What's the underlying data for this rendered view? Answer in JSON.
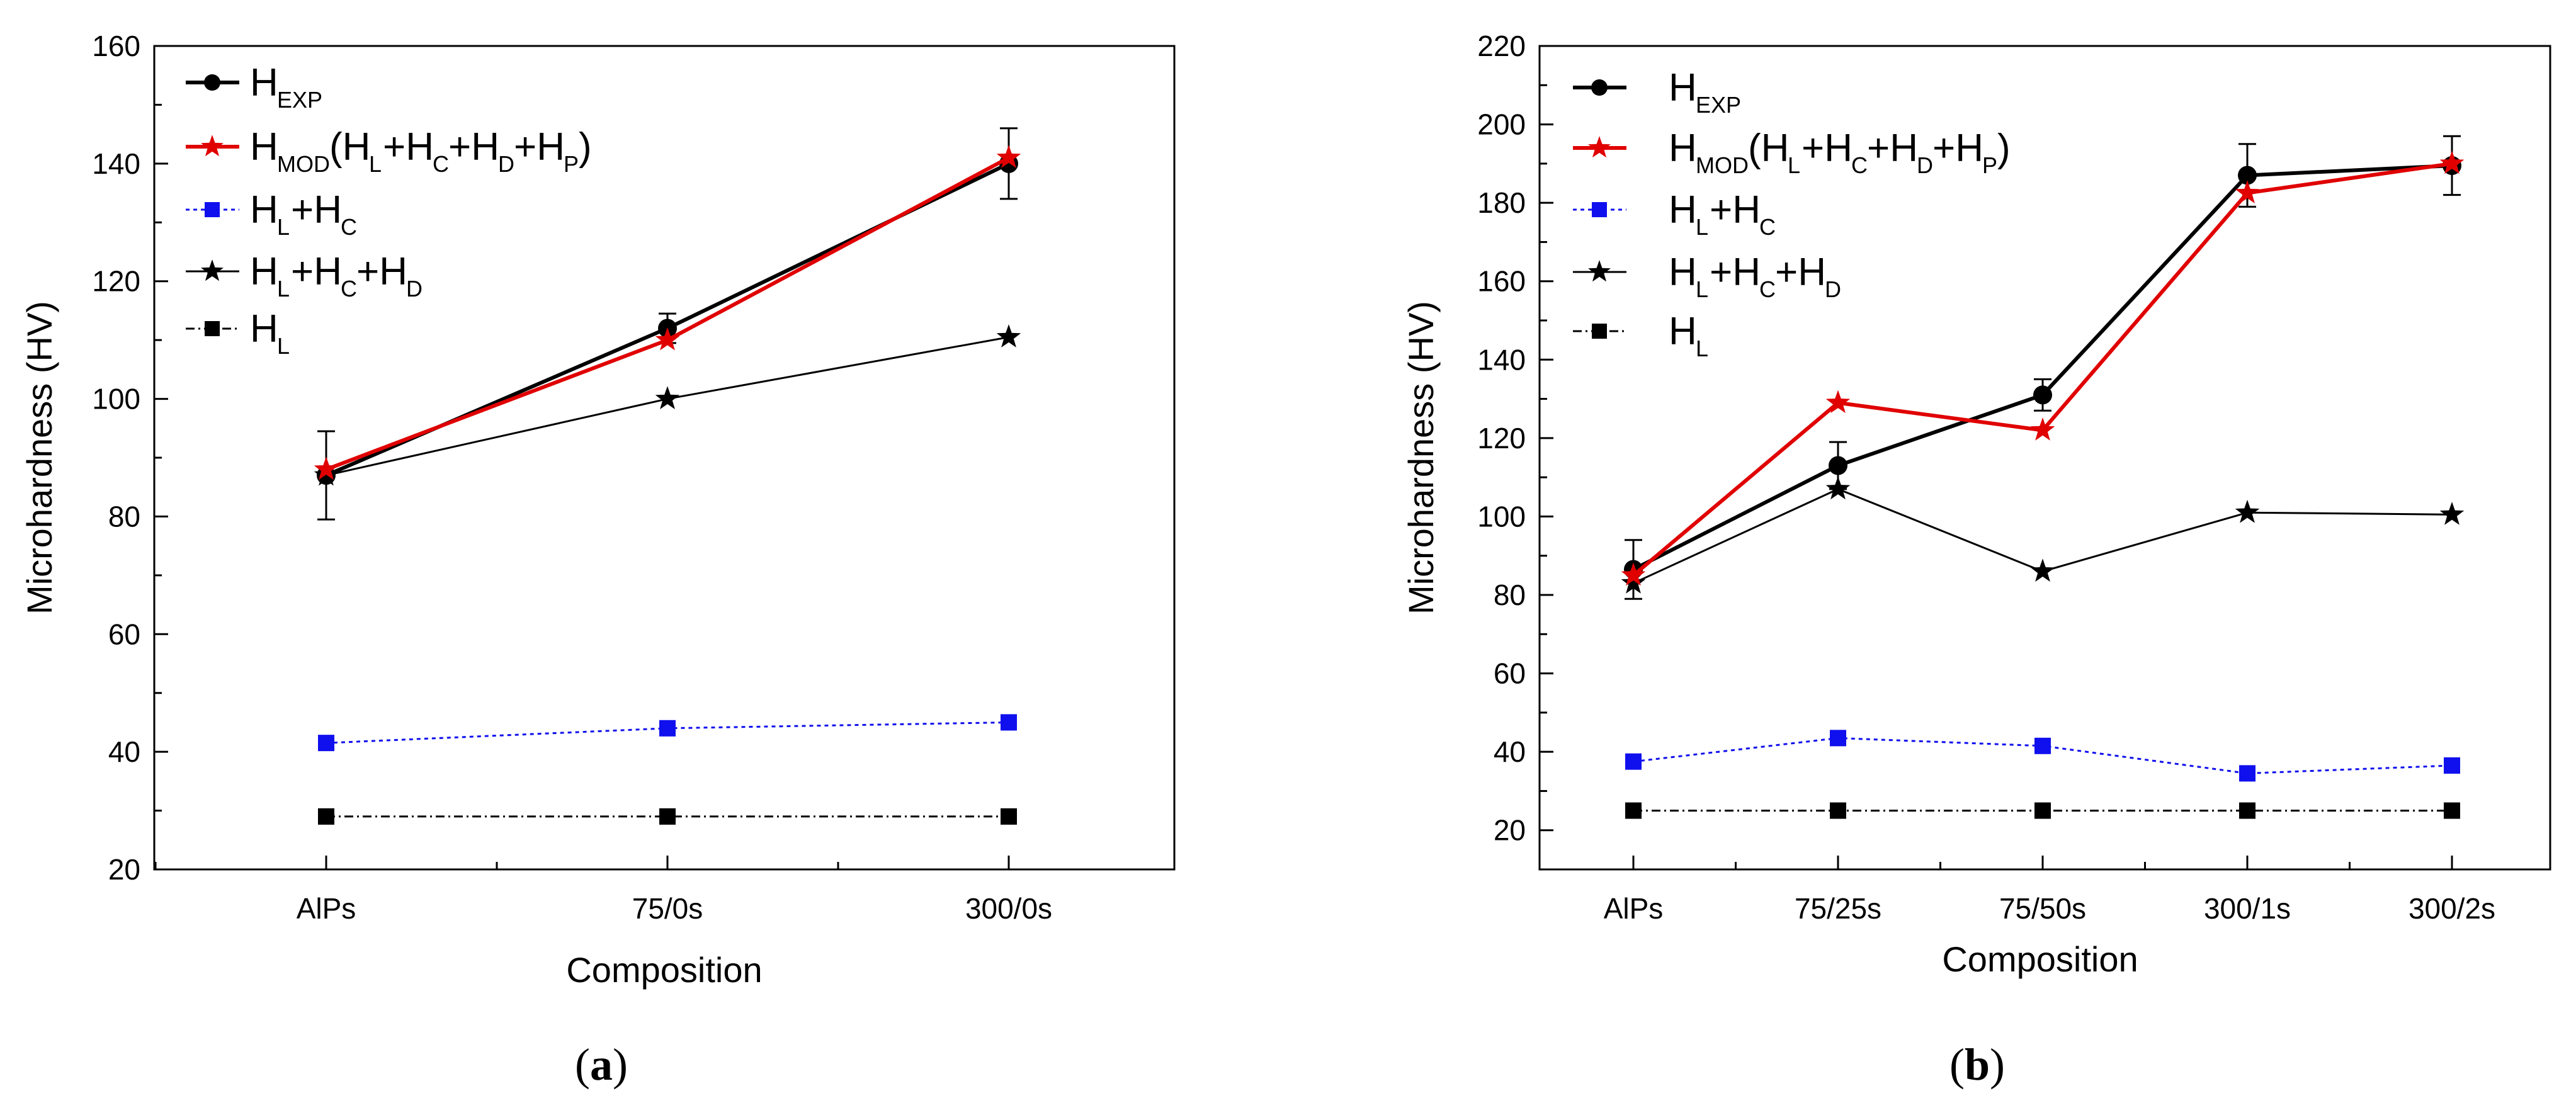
{
  "chart_data": [
    {
      "type": "line",
      "panel_label": "(a)",
      "panel_letter": "a",
      "xlabel": "Composition",
      "ylabel": "Microhardness (HV)",
      "categories": [
        "AlPs",
        "75/0s",
        "300/0s"
      ],
      "ylim": [
        20,
        160
      ],
      "yticks": [
        20,
        40,
        60,
        80,
        100,
        120,
        140,
        160
      ],
      "legend_position": "top-left",
      "series": [
        {
          "name": "H_EXP",
          "label_main": "H",
          "label_sub": "EXP",
          "color": "#000000",
          "marker": "circle",
          "line": "solid",
          "values": [
            87,
            112,
            140
          ],
          "errors": [
            7.5,
            2.5,
            6
          ]
        },
        {
          "name": "H_MOD (H_L+H_C+H_D+H_P)",
          "color": "#e00000",
          "marker": "star",
          "line": "solid",
          "values": [
            88,
            110,
            141
          ]
        },
        {
          "name": "H_L+H_C",
          "color": "#1010ee",
          "marker": "square",
          "line": "dotted",
          "values": [
            41.5,
            44,
            45
          ]
        },
        {
          "name": "H_L+H_C+H_D",
          "color": "#000000",
          "marker": "star",
          "line": "thin",
          "values": [
            87,
            100,
            110.5
          ]
        },
        {
          "name": "H_L",
          "color": "#000000",
          "marker": "square",
          "line": "dashdot",
          "values": [
            29,
            29,
            29
          ]
        }
      ]
    },
    {
      "type": "line",
      "panel_label": "(b)",
      "panel_letter": "b",
      "xlabel": "Composition",
      "ylabel": "Microhardness (HV)",
      "categories": [
        "AlPs",
        "75/25s",
        "75/50s",
        "300/1s",
        "300/2s"
      ],
      "ylim": [
        10,
        220
      ],
      "yticks": [
        20,
        40,
        60,
        80,
        100,
        120,
        140,
        160,
        180,
        200,
        220
      ],
      "legend_position": "top-left",
      "series": [
        {
          "name": "H_EXP",
          "color": "#000000",
          "marker": "circle",
          "line": "solid",
          "values": [
            86.5,
            113,
            131,
            187,
            189.5
          ],
          "errors": [
            7.5,
            6,
            4,
            8,
            7.5
          ]
        },
        {
          "name": "H_MOD(H_L+H_C+H_D+H_P)",
          "color": "#e00000",
          "marker": "star",
          "line": "solid",
          "values": [
            85,
            129,
            122,
            182.5,
            190
          ]
        },
        {
          "name": "H_L+H_C",
          "color": "#1010ee",
          "marker": "square",
          "line": "dotted",
          "values": [
            37.5,
            43.5,
            41.5,
            34.5,
            36.5
          ]
        },
        {
          "name": "H_L+H_C+H_D",
          "color": "#000000",
          "marker": "star",
          "line": "thin",
          "values": [
            83,
            107,
            86,
            101,
            100.5
          ]
        },
        {
          "name": "H_L",
          "color": "#000000",
          "marker": "square",
          "line": "dashdot",
          "values": [
            25,
            25,
            25,
            25,
            25
          ]
        }
      ]
    }
  ]
}
